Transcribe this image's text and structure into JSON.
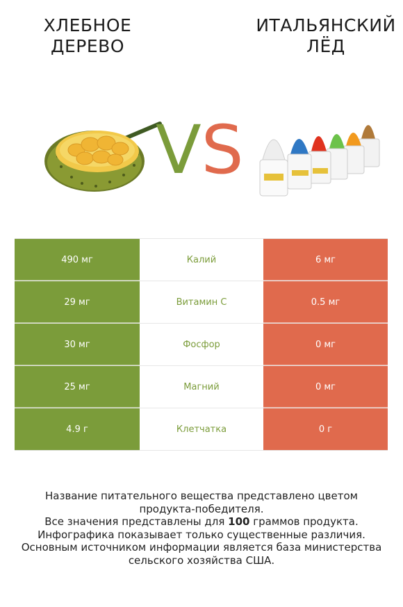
{
  "left_food": {
    "title_line1": "ХЛЕБНОЕ",
    "title_line2": "ДЕРЕВО"
  },
  "right_food": {
    "title_line1": "ИТАЛЬЯНСКИЙ",
    "title_line2": "ЛЁД"
  },
  "vs": {
    "v": "V",
    "s": "S"
  },
  "colors": {
    "left": "#7b9c3a",
    "right": "#e06a4d"
  },
  "rows": [
    {
      "left": "490 мг",
      "name": "Калий",
      "right": "6 мг"
    },
    {
      "left": "29 мг",
      "name": "Витамин C",
      "right": "0.5 мг"
    },
    {
      "left": "30 мг",
      "name": "Фосфор",
      "right": "0 мг"
    },
    {
      "left": "25 мг",
      "name": "Магний",
      "right": "0 мг"
    },
    {
      "left": "4.9 г",
      "name": "Клетчатка",
      "right": "0 г"
    }
  ],
  "footer": {
    "line1": "Название питательного вещества представлено цветом",
    "line2": "продукта-победителя.",
    "line3_prefix": "Все значения представлены для ",
    "line3_bold": "100",
    "line3_suffix": " граммов продукта.",
    "line4": "Инфографика показывает только существенные различия.",
    "line5": "Основным источником информации является база министерства",
    "line6": "сельского хозяйства США."
  }
}
